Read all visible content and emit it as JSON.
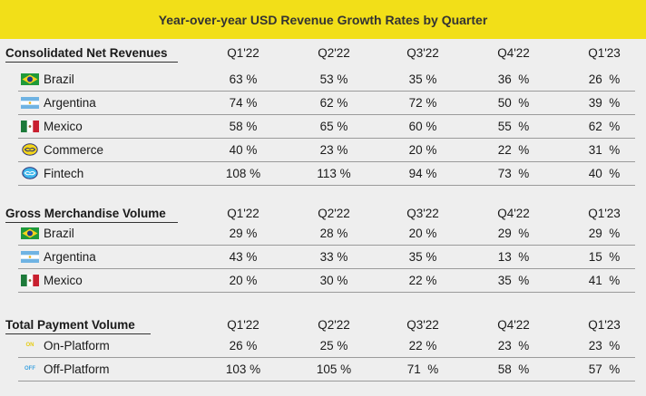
{
  "title": "Year-over-year USD Revenue Growth Rates by Quarter",
  "colors": {
    "title_bg": "#f2df18",
    "page_bg": "#eeeeee"
  },
  "sections": [
    {
      "label": "Consolidated Net Revenues",
      "quarters": [
        "Q1'22",
        "Q2'22",
        "Q3'22",
        "Q4'22",
        "Q1'23"
      ],
      "rows": [
        {
          "icon": "brazil-flag-icon",
          "name": "Brazil",
          "values": [
            "63 %",
            "53 %",
            "35 %",
            "36  %",
            "26  %"
          ]
        },
        {
          "icon": "argentina-flag-icon",
          "name": "Argentina",
          "values": [
            "74 %",
            "62 %",
            "72 %",
            "50  %",
            "39  %"
          ]
        },
        {
          "icon": "mexico-flag-icon",
          "name": "Mexico",
          "values": [
            "58 %",
            "65 %",
            "60 %",
            "55  %",
            "62  %"
          ]
        },
        {
          "icon": "commerce-icon",
          "name": "Commerce",
          "values": [
            "40 %",
            "23 %",
            "20 %",
            "22  %",
            "31  %"
          ]
        },
        {
          "icon": "fintech-icon",
          "name": "Fintech",
          "values": [
            "108 %",
            "113 %",
            "94 %",
            "73  %",
            "40  %"
          ]
        }
      ]
    },
    {
      "label": "Gross Merchandise Volume",
      "quarters": [
        "Q1'22",
        "Q2'22",
        "Q3'22",
        "Q4'22",
        "Q1'23"
      ],
      "rows": [
        {
          "icon": "brazil-flag-icon",
          "name": "Brazil",
          "values": [
            "29 %",
            "28 %",
            "20 %",
            "29  %",
            "29  %"
          ]
        },
        {
          "icon": "argentina-flag-icon",
          "name": "Argentina",
          "values": [
            "43 %",
            "33 %",
            "35 %",
            "13  %",
            "15  %"
          ]
        },
        {
          "icon": "mexico-flag-icon",
          "name": "Mexico",
          "values": [
            "20 %",
            "30 %",
            "22 %",
            "35  %",
            "41  %"
          ]
        }
      ]
    },
    {
      "label": "Total Payment Volume",
      "quarters": [
        "Q1'22",
        "Q2'22",
        "Q3'22",
        "Q4'22",
        "Q1'23"
      ],
      "rows": [
        {
          "icon": "on-platform-icon",
          "icon_text": "ON",
          "name": "On-Platform",
          "values": [
            "26 %",
            "25 %",
            "22 %",
            "23  %",
            "23  %"
          ]
        },
        {
          "icon": "off-platform-icon",
          "icon_text": "OFF",
          "name": "Off-Platform",
          "values": [
            "103 %",
            "105 %",
            "71  %",
            "58  %",
            "57  %"
          ]
        }
      ]
    }
  ]
}
